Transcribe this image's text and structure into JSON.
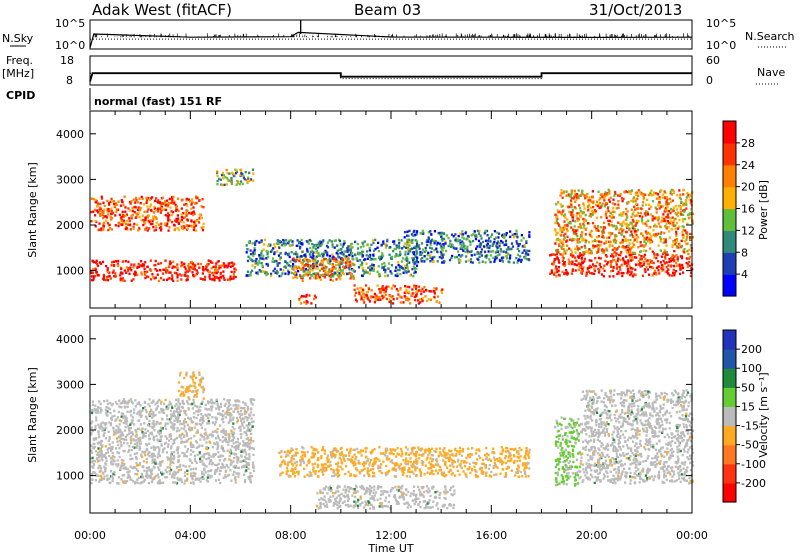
{
  "header": {
    "station": "Adak West (fitACF)",
    "beam": "Beam 03",
    "date": "31/Oct/2013"
  },
  "noise_panel": {
    "left_label": "N.Sky",
    "right_label": "N.Search",
    "left_ticks": [
      "10^5",
      "10^0"
    ],
    "right_ticks": [
      "10^5",
      "10^0"
    ]
  },
  "freq_panel": {
    "left_label_1": "Freq.",
    "left_label_2": "[MHz]",
    "right_label": "Nave",
    "left_ticks": [
      "18",
      "8"
    ],
    "right_ticks": [
      "60",
      "0"
    ]
  },
  "cpid_panel": {
    "label": "CPID",
    "text": "normal (fast) 151 RF"
  },
  "power_panel": {
    "ylabel": "Slant Range [km]",
    "colorbar_label": "Power [dB]",
    "colorbar_ticks": [
      "28",
      "24",
      "20",
      "16",
      "12",
      "8",
      "4"
    ]
  },
  "velocity_panel": {
    "ylabel": "Slant Range [km]",
    "colorbar_label": "Velocity [m s⁻¹]",
    "colorbar_ticks": [
      "200",
      "100",
      "50",
      "15",
      "-15",
      "-50",
      "-100",
      "-200"
    ]
  },
  "colors": {
    "power_scale": [
      "#0000ff",
      "#1e3fb4",
      "#2f8a7a",
      "#5fbf3a",
      "#ffb000",
      "#ff8000",
      "#ff3300",
      "#ff0000"
    ],
    "velocity_scale": [
      "#2233bb",
      "#2255aa",
      "#1e8a3a",
      "#66cc33",
      "#bbbbbb",
      "#ffaa22",
      "#ff7722",
      "#ff3311",
      "#ff0000"
    ]
  },
  "chart_data": [
    {
      "type": "line",
      "title": "Adak West (fitACF)",
      "x_unit": "hours UT",
      "xlim": [
        0,
        24
      ],
      "series": [
        {
          "name": "N.Sky",
          "description": "noise level, roughly flat near 10^1 with spikes",
          "x": [
            0,
            0.15,
            4,
            8,
            8.3,
            12,
            16,
            20,
            24
          ],
          "y": [
            1,
            500,
            120,
            150,
            1000,
            130,
            120,
            110,
            120
          ]
        },
        {
          "name": "N.Search",
          "description": "dotted line",
          "x": [
            0,
            24
          ],
          "y": [
            50,
            50
          ]
        }
      ]
    },
    {
      "type": "line",
      "xlim": [
        0,
        24
      ],
      "series": [
        {
          "name": "Freq.",
          "x": [
            0,
            0.1,
            10,
            10,
            18,
            18,
            24
          ],
          "y": [
            9,
            12,
            12,
            10.7,
            10.7,
            12,
            12
          ],
          "ylim": [
            8,
            18
          ]
        },
        {
          "name": "Nave",
          "x": [
            0,
            10,
            10,
            18,
            18,
            24
          ],
          "y": [
            24,
            24,
            12,
            12,
            24,
            24
          ],
          "ylim": [
            0,
            60
          ]
        }
      ]
    },
    {
      "type": "heatmap",
      "title": "Power",
      "ylabel": "Slant Range [km]",
      "xlabel": "Time UT",
      "xlim": [
        0,
        24
      ],
      "ylim": [
        180,
        4500
      ],
      "x_ticks": [
        "00:00",
        "04:00",
        "08:00",
        "12:00",
        "16:00",
        "20:00",
        "00:00"
      ],
      "y_ticks": [
        1000,
        2000,
        3000,
        4000
      ],
      "colorbar_range_db": [
        0,
        32
      ],
      "regions": [
        {
          "t0": 0,
          "t1": 5.8,
          "r0": 800,
          "r1": 1250,
          "level": 7
        },
        {
          "t0": 0,
          "t1": 4.5,
          "r0": 1900,
          "r1": 2650,
          "level": 6
        },
        {
          "t0": 5,
          "t1": 6.5,
          "r0": 2900,
          "r1": 3250,
          "level": 3
        },
        {
          "t0": 6.2,
          "t1": 13.0,
          "r0": 900,
          "r1": 1700,
          "level": 2
        },
        {
          "t0": 8,
          "t1": 10.5,
          "r0": 800,
          "r1": 1300,
          "level": 5
        },
        {
          "t0": 8.3,
          "t1": 9.0,
          "r0": 300,
          "r1": 500,
          "level": 7
        },
        {
          "t0": 10.5,
          "t1": 14.0,
          "r0": 300,
          "r1": 700,
          "level": 6
        },
        {
          "t0": 12.5,
          "t1": 17.5,
          "r0": 1200,
          "r1": 1900,
          "level": 2
        },
        {
          "t0": 18.3,
          "t1": 24,
          "r0": 900,
          "r1": 1400,
          "level": 7
        },
        {
          "t0": 18.5,
          "t1": 24,
          "r0": 1400,
          "r1": 2800,
          "level": 5
        }
      ]
    },
    {
      "type": "heatmap",
      "title": "Velocity",
      "ylabel": "Slant Range [km]",
      "xlabel": "Time UT",
      "xlim": [
        0,
        24
      ],
      "ylim": [
        180,
        4500
      ],
      "x_ticks": [
        "00:00",
        "04:00",
        "08:00",
        "12:00",
        "16:00",
        "20:00",
        "00:00"
      ],
      "y_ticks": [
        1000,
        2000,
        3000,
        4000
      ],
      "colorbar_range": [
        -250,
        250
      ],
      "regions": [
        {
          "t0": 0,
          "t1": 6.5,
          "r0": 850,
          "r1": 2700,
          "velocity": 0
        },
        {
          "t0": 3.5,
          "t1": 4.5,
          "r0": 2700,
          "r1": 3300,
          "velocity": -50
        },
        {
          "t0": 7.5,
          "t1": 17.5,
          "r0": 1000,
          "r1": 1650,
          "velocity": -50
        },
        {
          "t0": 9,
          "t1": 14.5,
          "r0": 300,
          "r1": 800,
          "velocity": 0
        },
        {
          "t0": 18.5,
          "t1": 19.5,
          "r0": 800,
          "r1": 2300,
          "velocity": 30
        },
        {
          "t0": 19.5,
          "t1": 24,
          "r0": 850,
          "r1": 2900,
          "velocity": 0
        }
      ]
    }
  ]
}
